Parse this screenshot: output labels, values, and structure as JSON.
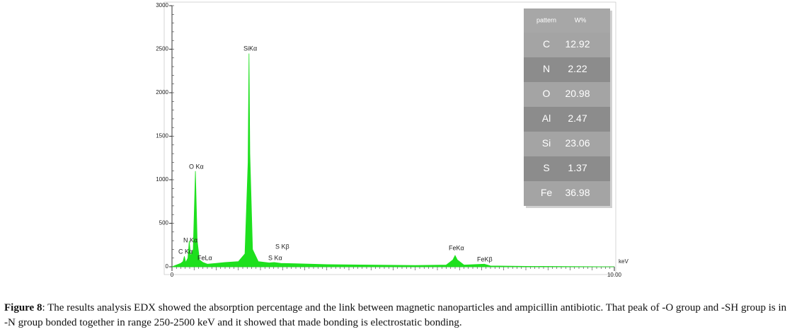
{
  "chart_data": {
    "type": "area",
    "x": [
      0.0,
      0.1,
      0.2,
      0.25,
      0.28,
      0.31,
      0.36,
      0.39,
      0.42,
      0.48,
      0.53,
      0.57,
      0.62,
      0.7,
      0.8,
      1.0,
      1.2,
      1.5,
      1.65,
      1.72,
      1.74,
      1.76,
      1.82,
      1.95,
      2.2,
      2.31,
      2.46,
      2.8,
      3.5,
      4.5,
      5.5,
      6.2,
      6.35,
      6.4,
      6.45,
      6.6,
      7.06,
      7.2,
      8.0,
      9.0,
      10.0
    ],
    "values": [
      0,
      20,
      40,
      60,
      120,
      50,
      100,
      300,
      120,
      200,
      1100,
      300,
      80,
      50,
      30,
      40,
      50,
      60,
      150,
      1200,
      2450,
      1300,
      200,
      60,
      45,
      50,
      40,
      35,
      25,
      20,
      15,
      20,
      80,
      130,
      80,
      20,
      30,
      10,
      5,
      3,
      0
    ],
    "color": "#1ee01e",
    "xlim": [
      0,
      10
    ],
    "ylim": [
      0,
      3000
    ],
    "xticks": [
      {
        "value": 0,
        "label": "0"
      },
      {
        "value": 10,
        "label": "10.00"
      }
    ],
    "yticks": [
      0,
      500,
      1000,
      1500,
      2000,
      2500,
      3000
    ],
    "x_label": "keV",
    "annotations": [
      "C Kα",
      "N Kα",
      "O Kα",
      "FeLα",
      "SiKα",
      "S Kα",
      "S Kβ",
      "FeKα",
      "FeKβ"
    ],
    "table": {
      "columns": [
        "pattern",
        "W%"
      ],
      "rows": [
        [
          "C",
          "12.92"
        ],
        [
          "N",
          "2.22"
        ],
        [
          "O",
          "20.98"
        ],
        [
          "Al",
          "2.47"
        ],
        [
          "Si",
          "23.06"
        ],
        [
          "S",
          "1.37"
        ],
        [
          "Fe",
          "36.98"
        ]
      ]
    }
  },
  "caption": {
    "label": "Figure 8",
    "text": ": The results analysis EDX showed the absorption percentage and the link between magnetic  nanoparticles and ampicillin antibiotic. That peak of -O group and -SH group is in -N group bonded together in range 250-2500 keV and it showed that made bonding is electrostatic bonding."
  }
}
